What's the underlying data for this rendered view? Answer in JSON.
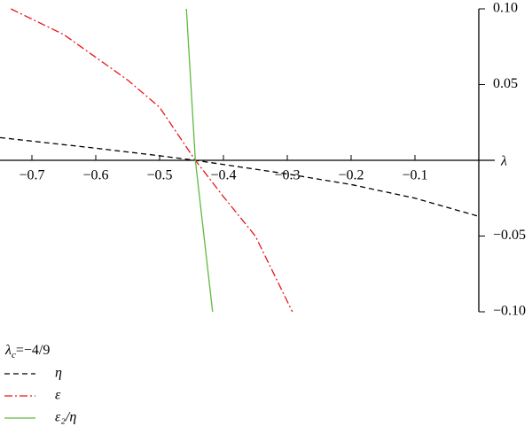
{
  "chart_data": {
    "type": "line",
    "x_label": "λ",
    "annotation": [
      "λ",
      "c",
      "=−4/9"
    ],
    "xlim": [
      -0.75,
      0
    ],
    "ylim": [
      -0.1,
      0.1
    ],
    "xticks": [
      {
        "value": -0.7,
        "label": "−0.7"
      },
      {
        "value": -0.6,
        "label": "−0.6"
      },
      {
        "value": -0.5,
        "label": "−0.5"
      },
      {
        "value": -0.4,
        "label": "−0.4"
      },
      {
        "value": -0.3,
        "label": "−0.3"
      },
      {
        "value": -0.2,
        "label": "−0.2"
      },
      {
        "value": -0.1,
        "label": "−0.1"
      }
    ],
    "yticks": [
      {
        "value": 0.1,
        "label": "0.10"
      },
      0.05,
      {
        "value": -0.05,
        "label": "−0.05"
      },
      {
        "value": -0.1,
        "label": "−0.10"
      }
    ],
    "series": [
      {
        "name": "η",
        "color": "#000000",
        "dash": "6,4",
        "x": [
          -0.75,
          -0.6,
          -0.5,
          -0.444,
          -0.3,
          -0.2,
          -0.1,
          0
        ],
        "values": [
          0.015,
          0.008,
          0.003,
          0,
          -0.009,
          -0.016,
          -0.025,
          -0.037
        ]
      },
      {
        "name": "ε",
        "color": "#e8171b",
        "dash": "9,3,2,3",
        "x": [
          -0.733,
          -0.65,
          -0.55,
          -0.5,
          -0.444,
          -0.4,
          -0.35,
          -0.292
        ],
        "values": [
          0.1,
          0.083,
          0.053,
          0.035,
          0,
          -0.024,
          -0.05,
          -0.1
        ]
      },
      {
        "name": "ε₂/η",
        "color": "#5dbb3f",
        "dash": "none",
        "x": [
          -0.458,
          -0.444,
          -0.417
        ],
        "values": [
          0.1,
          0,
          -0.1
        ]
      }
    ]
  }
}
